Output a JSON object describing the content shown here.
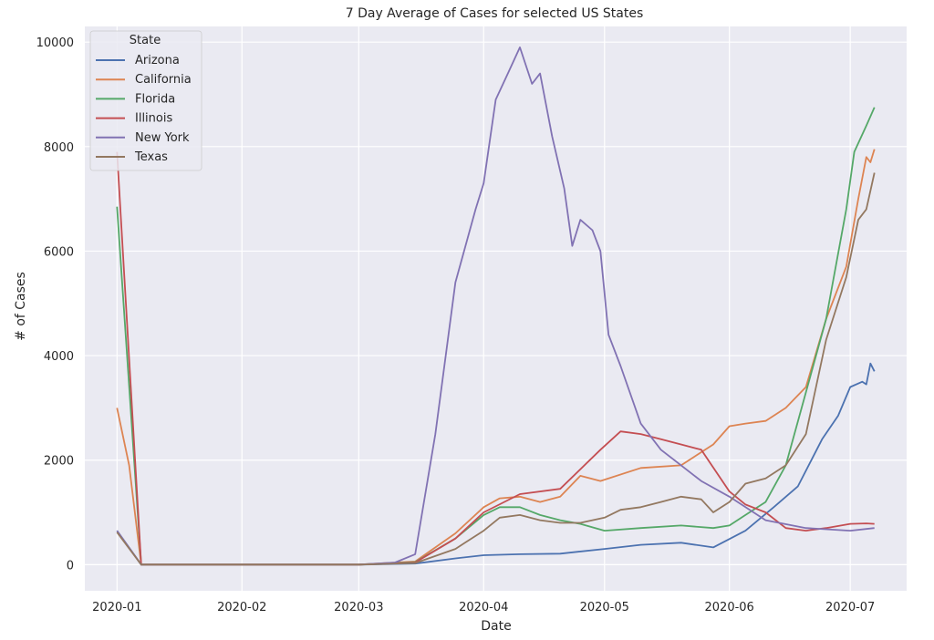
{
  "chart_data": {
    "type": "line",
    "title": "7 Day Average of Cases for selected US States",
    "xlabel": "Date",
    "ylabel": "# of Cases",
    "ylim": [
      -500,
      10300
    ],
    "xlim": [
      "2019-12-24",
      "2020-07-15"
    ],
    "grid": true,
    "legend_title": "State",
    "legend_position": "top-left",
    "yticks": [
      0,
      2000,
      4000,
      6000,
      8000,
      10000
    ],
    "yticks_text": [
      "0",
      "2000",
      "4000",
      "6000",
      "8000",
      "10000"
    ],
    "xticks": [
      "2020-01-01",
      "2020-02-01",
      "2020-03-01",
      "2020-04-01",
      "2020-05-01",
      "2020-06-01",
      "2020-07-01"
    ],
    "xticks_text": [
      "2020-01",
      "2020-02",
      "2020-03",
      "2020-04",
      "2020-05",
      "2020-06",
      "2020-07"
    ],
    "series": [
      {
        "name": "Arizona",
        "color": "#4c72b0",
        "x": [
          "2020-01-01",
          "2020-01-07",
          "2020-03-01",
          "2020-03-15",
          "2020-03-25",
          "2020-04-01",
          "2020-04-10",
          "2020-04-20",
          "2020-05-01",
          "2020-05-10",
          "2020-05-20",
          "2020-05-28",
          "2020-06-05",
          "2020-06-12",
          "2020-06-18",
          "2020-06-24",
          "2020-06-28",
          "2020-07-01",
          "2020-07-04",
          "2020-07-05",
          "2020-07-06",
          "2020-07-07"
        ],
        "y": [
          650,
          0,
          0,
          20,
          120,
          180,
          200,
          210,
          300,
          380,
          420,
          330,
          650,
          1100,
          1500,
          2400,
          2850,
          3400,
          3500,
          3450,
          3850,
          3700
        ]
      },
      {
        "name": "California",
        "color": "#dd8452",
        "x": [
          "2020-01-01",
          "2020-01-04",
          "2020-01-07",
          "2020-03-01",
          "2020-03-15",
          "2020-03-25",
          "2020-04-01",
          "2020-04-05",
          "2020-04-10",
          "2020-04-15",
          "2020-04-20",
          "2020-04-25",
          "2020-04-30",
          "2020-05-10",
          "2020-05-20",
          "2020-05-28",
          "2020-06-01",
          "2020-06-05",
          "2020-06-10",
          "2020-06-15",
          "2020-06-20",
          "2020-06-25",
          "2020-06-30",
          "2020-07-03",
          "2020-07-05",
          "2020-07-06",
          "2020-07-07"
        ],
        "y": [
          3000,
          1900,
          0,
          0,
          60,
          600,
          1100,
          1270,
          1300,
          1200,
          1300,
          1700,
          1600,
          1850,
          1900,
          2300,
          2650,
          2700,
          2750,
          3000,
          3400,
          4700,
          5700,
          7000,
          7800,
          7700,
          7950
        ]
      },
      {
        "name": "Florida",
        "color": "#55a868",
        "x": [
          "2020-01-01",
          "2020-01-07",
          "2020-03-01",
          "2020-03-15",
          "2020-03-25",
          "2020-04-01",
          "2020-04-05",
          "2020-04-10",
          "2020-04-15",
          "2020-04-20",
          "2020-04-25",
          "2020-05-01",
          "2020-05-10",
          "2020-05-20",
          "2020-05-28",
          "2020-06-01",
          "2020-06-05",
          "2020-06-10",
          "2020-06-15",
          "2020-06-20",
          "2020-06-25",
          "2020-06-30",
          "2020-07-02",
          "2020-07-05",
          "2020-07-07"
        ],
        "y": [
          6850,
          0,
          0,
          50,
          500,
          950,
          1100,
          1100,
          950,
          850,
          780,
          650,
          700,
          750,
          700,
          750,
          950,
          1200,
          1900,
          3300,
          4700,
          6800,
          7900,
          8400,
          8750
        ]
      },
      {
        "name": "Illinois",
        "color": "#c44e52",
        "x": [
          "2020-01-01",
          "2020-01-07",
          "2020-03-01",
          "2020-03-15",
          "2020-03-25",
          "2020-04-01",
          "2020-04-10",
          "2020-04-20",
          "2020-04-30",
          "2020-05-05",
          "2020-05-10",
          "2020-05-15",
          "2020-05-20",
          "2020-05-25",
          "2020-06-01",
          "2020-06-05",
          "2020-06-10",
          "2020-06-15",
          "2020-06-20",
          "2020-06-25",
          "2020-07-01",
          "2020-07-05",
          "2020-07-07"
        ],
        "y": [
          7900,
          0,
          0,
          40,
          500,
          1000,
          1350,
          1450,
          2200,
          2550,
          2500,
          2400,
          2300,
          2200,
          1400,
          1150,
          1000,
          700,
          650,
          700,
          780,
          790,
          780
        ]
      },
      {
        "name": "New York",
        "color": "#8172b3",
        "x": [
          "2020-01-01",
          "2020-01-07",
          "2020-03-01",
          "2020-03-10",
          "2020-03-15",
          "2020-03-20",
          "2020-03-25",
          "2020-03-30",
          "2020-04-01",
          "2020-04-04",
          "2020-04-07",
          "2020-04-10",
          "2020-04-13",
          "2020-04-15",
          "2020-04-18",
          "2020-04-21",
          "2020-04-23",
          "2020-04-25",
          "2020-04-28",
          "2020-04-30",
          "2020-05-02",
          "2020-05-05",
          "2020-05-10",
          "2020-05-15",
          "2020-05-20",
          "2020-05-25",
          "2020-06-01",
          "2020-06-10",
          "2020-06-20",
          "2020-07-01",
          "2020-07-07"
        ],
        "y": [
          650,
          0,
          0,
          40,
          200,
          2500,
          5400,
          6800,
          7300,
          8900,
          9400,
          9900,
          9200,
          9400,
          8200,
          7200,
          6100,
          6600,
          6400,
          6000,
          4400,
          3800,
          2700,
          2200,
          1900,
          1600,
          1300,
          850,
          700,
          650,
          700
        ]
      },
      {
        "name": "Texas",
        "color": "#937860",
        "x": [
          "2020-01-01",
          "2020-01-07",
          "2020-03-01",
          "2020-03-15",
          "2020-03-25",
          "2020-04-01",
          "2020-04-05",
          "2020-04-10",
          "2020-04-15",
          "2020-04-20",
          "2020-04-25",
          "2020-05-01",
          "2020-05-05",
          "2020-05-10",
          "2020-05-15",
          "2020-05-20",
          "2020-05-25",
          "2020-05-28",
          "2020-06-01",
          "2020-06-05",
          "2020-06-10",
          "2020-06-15",
          "2020-06-20",
          "2020-06-25",
          "2020-06-30",
          "2020-07-03",
          "2020-07-05",
          "2020-07-07"
        ],
        "y": [
          620,
          0,
          0,
          30,
          300,
          650,
          900,
          950,
          850,
          800,
          800,
          900,
          1050,
          1100,
          1200,
          1300,
          1250,
          1000,
          1200,
          1550,
          1650,
          1900,
          2500,
          4300,
          5500,
          6600,
          6800,
          7500
        ]
      }
    ]
  }
}
